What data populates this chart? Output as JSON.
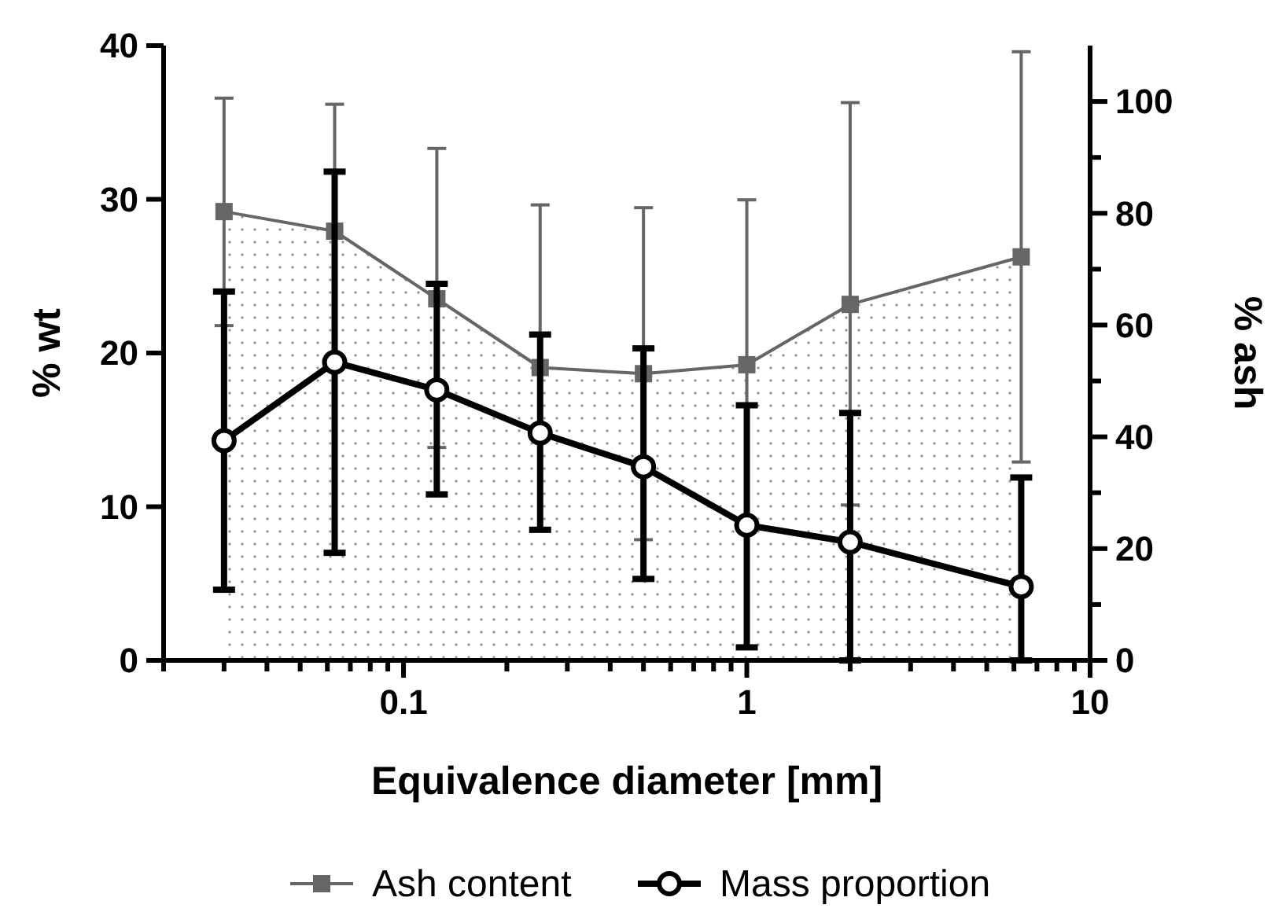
{
  "chart_data": {
    "type": "line",
    "xlabel": "Equivalence diameter [mm]",
    "ylabel": "% wt",
    "y2label": "% ash",
    "log": "x",
    "grid": false,
    "legend": "bottom",
    "xlim": [
      0.02,
      10
    ],
    "xticks": [
      {
        "value": 0.02,
        "label": null
      },
      {
        "value": 0.03,
        "label": null
      },
      {
        "value": 0.04,
        "label": null
      },
      {
        "value": 0.05,
        "label": null
      },
      {
        "value": 0.06,
        "label": null
      },
      {
        "value": 0.07,
        "label": null
      },
      {
        "value": 0.08,
        "label": null
      },
      {
        "value": 0.09,
        "label": null
      },
      0.1,
      {
        "value": 0.2,
        "label": null
      },
      {
        "value": 0.3,
        "label": null
      },
      {
        "value": 0.4,
        "label": null
      },
      {
        "value": 0.5,
        "label": null
      },
      {
        "value": 0.6,
        "label": null
      },
      {
        "value": 0.7,
        "label": null
      },
      {
        "value": 0.8,
        "label": null
      },
      {
        "value": 0.9,
        "label": null
      },
      1,
      {
        "value": 2,
        "label": null
      },
      {
        "value": 3,
        "label": null
      },
      {
        "value": 4,
        "label": null
      },
      {
        "value": 5,
        "label": null
      },
      {
        "value": 6,
        "label": null
      },
      {
        "value": 7,
        "label": null
      },
      {
        "value": 8,
        "label": null
      },
      {
        "value": 9,
        "label": null
      },
      10
    ],
    "ylim": [
      0,
      40
    ],
    "yticks": [
      0,
      10,
      20,
      30,
      40
    ],
    "y2lim": [
      0,
      110
    ],
    "y2ticks": [
      0,
      {
        "value": 10,
        "label": null
      },
      20,
      {
        "value": 30,
        "label": null
      },
      40,
      {
        "value": 50,
        "label": null
      },
      60,
      {
        "value": 70,
        "label": null
      },
      80,
      {
        "value": 90,
        "label": null
      },
      100
    ],
    "x": [
      0.03,
      0.063,
      0.125,
      0.25,
      0.5,
      1,
      2,
      6.3
    ],
    "series": [
      {
        "name": "Ash content",
        "type": "area",
        "axis": "y2",
        "marker": "square",
        "color": "#666666",
        "values": [
          80.3,
          76.8,
          64.7,
          52.4,
          51.3,
          52.9,
          63.7,
          72.2
        ],
        "errors": [
          [
            59.9,
            100.6
          ],
          [
            54.1,
            99.5
          ],
          [
            38.1,
            91.6
          ],
          [
            23.3,
            81.5
          ],
          [
            21.6,
            81.0
          ],
          [
            23.4,
            82.4
          ],
          [
            27.8,
            99.8
          ],
          [
            35.5,
            108.9
          ]
        ]
      },
      {
        "name": "Mass proportion",
        "axis": "y",
        "marker": "circle",
        "color": "#000000",
        "values": [
          14.3,
          19.4,
          17.6,
          14.8,
          12.6,
          8.8,
          7.7,
          4.8
        ],
        "errors": [
          [
            4.6,
            24.0
          ],
          [
            7.0,
            31.8
          ],
          [
            10.8,
            24.5
          ],
          [
            8.5,
            21.2
          ],
          [
            5.3,
            20.3
          ],
          [
            0.85,
            16.6
          ],
          [
            0,
            16.1
          ],
          [
            0,
            11.9
          ]
        ]
      }
    ]
  }
}
